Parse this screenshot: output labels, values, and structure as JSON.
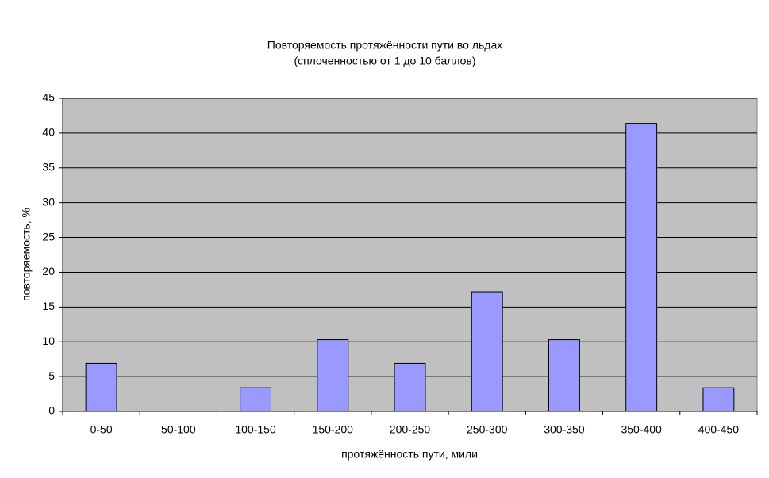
{
  "chart_data": {
    "type": "bar",
    "title": "Повторяемость протяжённости пути во льдах",
    "subtitle": "(сплоченностью от 1 до 10 баллов)",
    "x_label": "протяжённость пути, мили",
    "y_label": "повторяемость, %",
    "categories": [
      "0-50",
      "50-100",
      "100-150",
      "150-200",
      "200-250",
      "250-300",
      "300-350",
      "350-400",
      "400-450"
    ],
    "values": [
      6.9,
      0,
      3.4,
      10.3,
      6.9,
      17.2,
      10.3,
      41.4,
      3.4
    ],
    "color": "#9999ff",
    "ylim": [
      0,
      45
    ],
    "yticks": [
      0,
      5,
      10,
      15,
      20,
      25,
      30,
      35,
      40,
      45
    ],
    "grid": true
  }
}
